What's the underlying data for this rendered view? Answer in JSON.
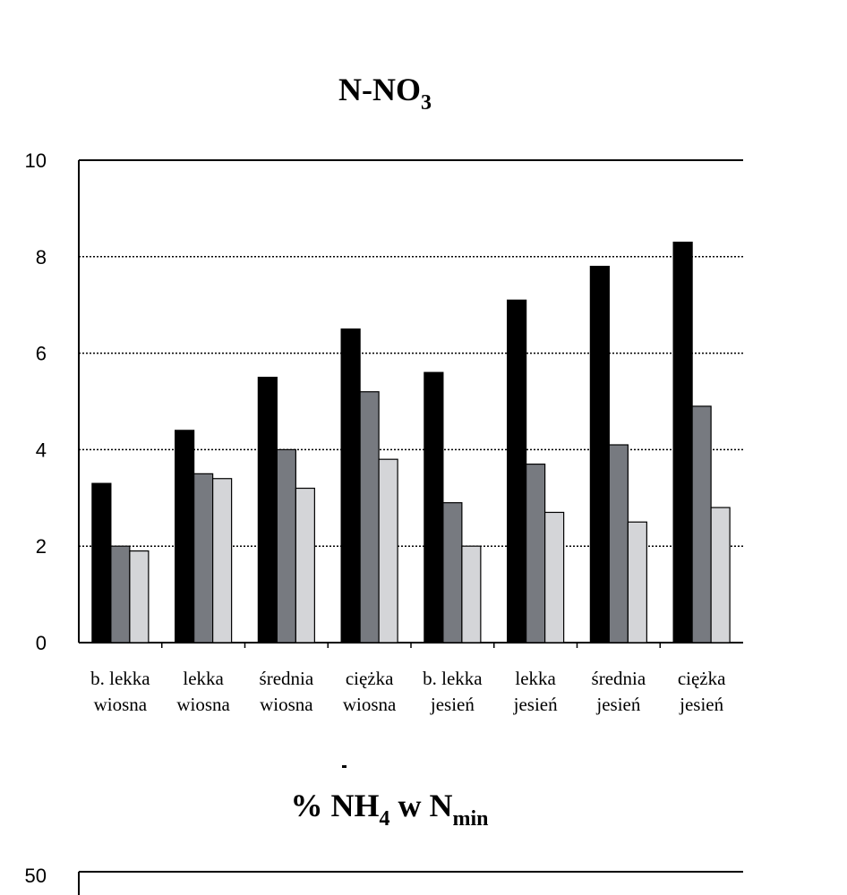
{
  "chart_data": [
    {
      "type": "bar",
      "title": "N-NO",
      "title_sub": "3",
      "categories": [
        [
          "b. lekka",
          "wiosna"
        ],
        [
          "lekka",
          "wiosna"
        ],
        [
          "średnia",
          "wiosna"
        ],
        [
          "ciężka",
          "wiosna"
        ],
        [
          "b. lekka",
          "jesień"
        ],
        [
          "lekka",
          "jesień"
        ],
        [
          "średnia",
          "jesień"
        ],
        [
          "ciężka",
          "jesień"
        ]
      ],
      "series": [
        {
          "color": "#000000",
          "values": [
            3.3,
            4.4,
            5.5,
            6.5,
            5.6,
            7.1,
            7.8,
            8.3
          ]
        },
        {
          "color": "#777a80",
          "values": [
            2.0,
            3.5,
            4.0,
            5.2,
            2.9,
            3.7,
            4.1,
            4.9
          ]
        },
        {
          "color": "#d4d5d8",
          "values": [
            1.9,
            3.4,
            3.2,
            3.8,
            2.0,
            2.7,
            2.5,
            2.8
          ]
        }
      ],
      "ylim": [
        0,
        10
      ],
      "yticks": [
        "0",
        "2",
        "4",
        "6",
        "8",
        "10"
      ],
      "grid": true
    },
    {
      "type": "bar",
      "title": "% NH",
      "title_sub": "4",
      "title_mid": " w  N",
      "title_sub2": "min",
      "yticks": [
        "50"
      ]
    }
  ]
}
